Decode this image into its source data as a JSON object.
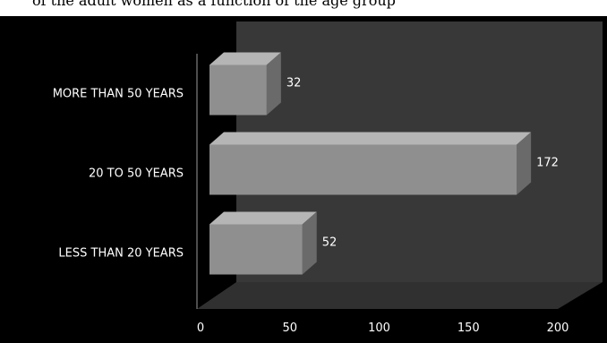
{
  "caption_fragment": "of the adult women as a function of the age group",
  "chart_data": {
    "type": "bar",
    "orientation": "horizontal",
    "style": "3d",
    "categories": [
      "MORE THAN 50 YEARS",
      "20 TO 50 YEARS",
      "LESS THAN 20 YEARS"
    ],
    "values": [
      32,
      172,
      52
    ],
    "xlim": [
      0,
      200
    ],
    "xticks": [
      0,
      50,
      100,
      150,
      200
    ],
    "title": "",
    "xlabel": "",
    "ylabel": "",
    "grid": false,
    "legend": false,
    "colors": {
      "background": "#000000",
      "wall": "#383838",
      "floor": "#303030",
      "bar_front": "#8f8f8f",
      "bar_top": "#b5b5b5",
      "bar_side": "#6a6a6a",
      "text": "#ffffff"
    }
  }
}
